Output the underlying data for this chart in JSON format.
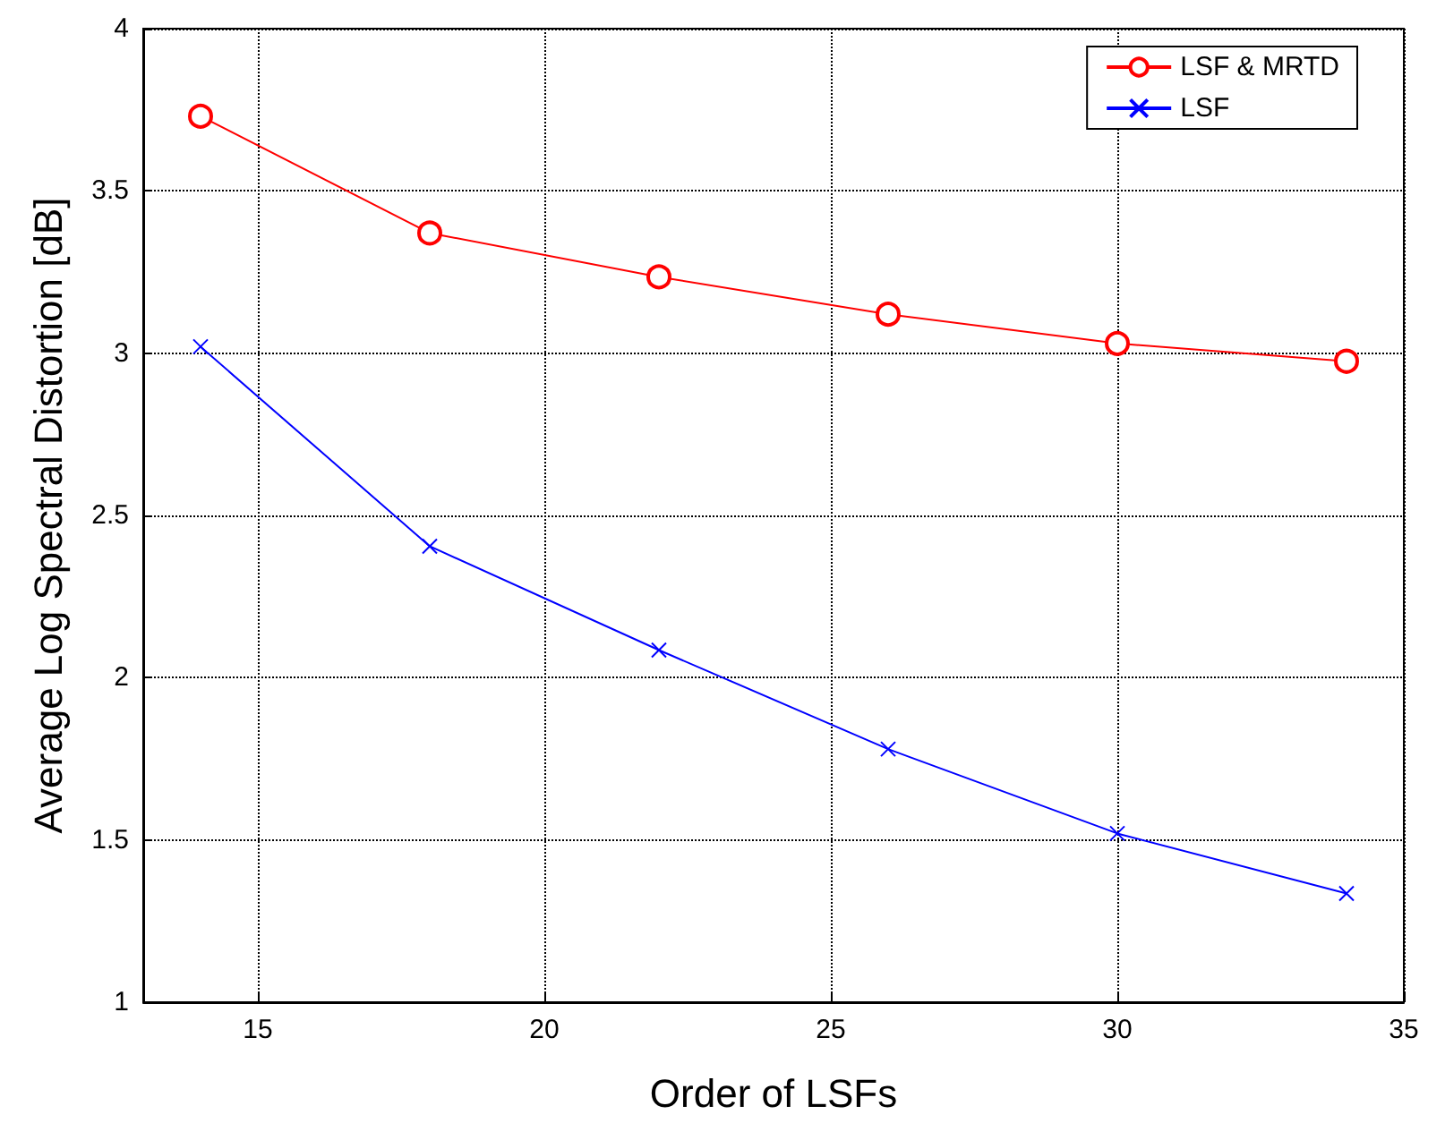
{
  "chart_data": {
    "type": "line",
    "xlabel": "Order of LSFs",
    "ylabel": "Average Log Spectral Distortion [dB]",
    "x": [
      14,
      18,
      22,
      26,
      30,
      34
    ],
    "series": [
      {
        "name": "LSF & MRTD",
        "color": "#ff0000",
        "marker": "circle",
        "values": [
          3.73,
          3.37,
          3.235,
          3.12,
          3.03,
          2.975
        ]
      },
      {
        "name": "LSF",
        "color": "#0000ff",
        "marker": "cross",
        "values": [
          3.02,
          2.405,
          2.085,
          1.78,
          1.52,
          1.335
        ]
      }
    ],
    "xlim": [
      13,
      35
    ],
    "xticks": [
      15,
      20,
      25,
      30,
      35
    ],
    "ylim": [
      1,
      4
    ],
    "yticks": [
      1,
      1.5,
      2,
      2.5,
      3,
      3.5,
      4
    ],
    "grid": true,
    "legend": "top right",
    "line_style": "solid"
  }
}
